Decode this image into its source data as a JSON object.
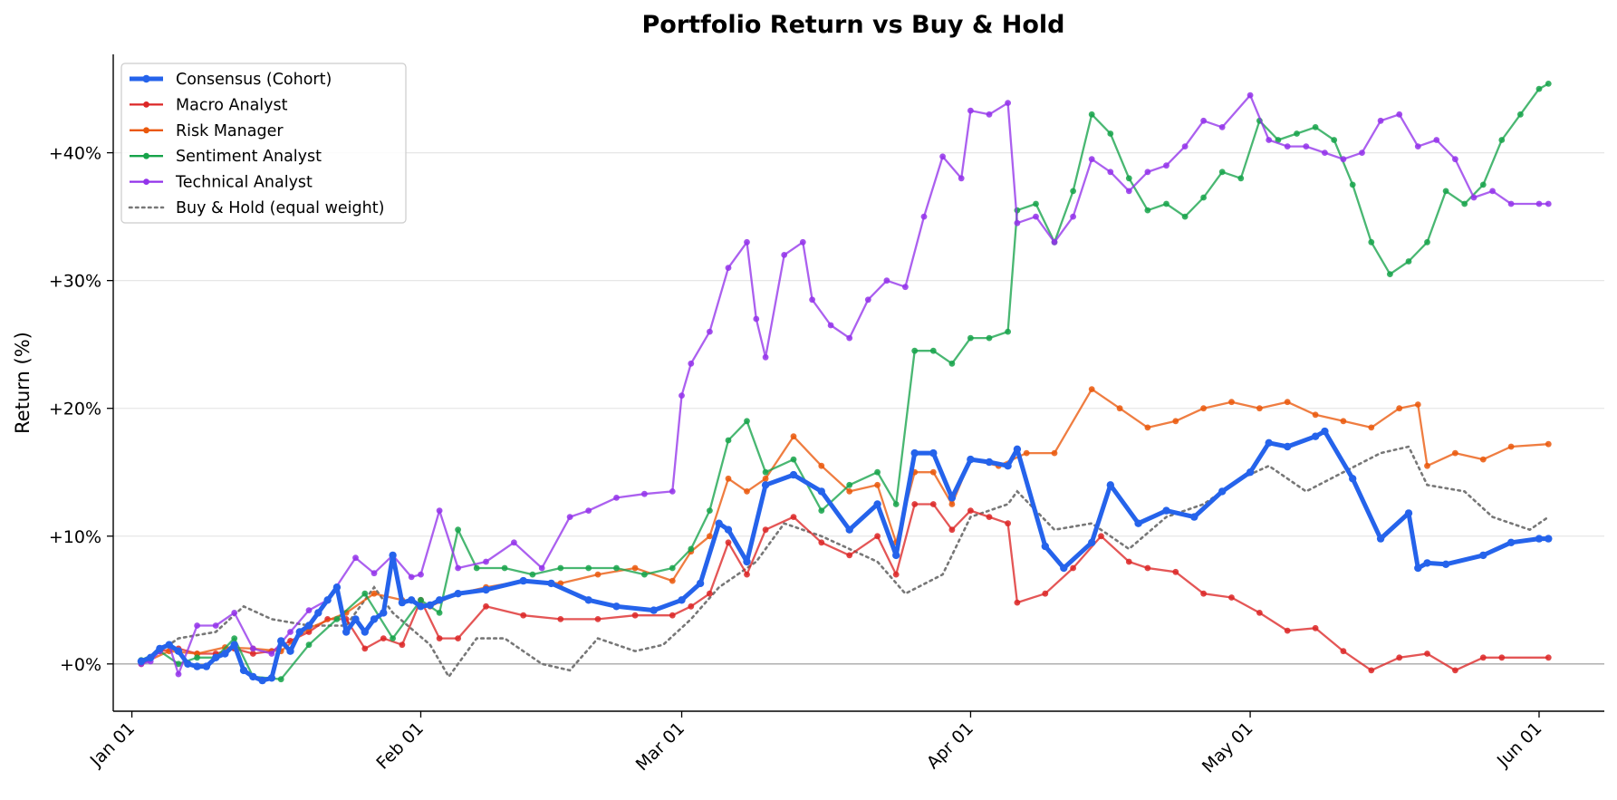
{
  "chart_data": {
    "type": "line",
    "title": "Portfolio Return vs Buy & Hold",
    "xlabel": "",
    "ylabel": "Return (%)",
    "x_range": [
      "2025-12-30",
      "2026-06-08"
    ],
    "ylim": [
      -3.7,
      47.7
    ],
    "x_ticks": [
      {
        "date": "2026-01-01",
        "label": "Jan 01"
      },
      {
        "date": "2026-02-01",
        "label": "Feb 01"
      },
      {
        "date": "2026-03-01",
        "label": "Mar 01"
      },
      {
        "date": "2026-04-01",
        "label": "Apr 01"
      },
      {
        "date": "2026-05-01",
        "label": "May 01"
      },
      {
        "date": "2026-06-01",
        "label": "Jun 01"
      }
    ],
    "y_ticks": [
      {
        "value": 0,
        "label": "+0%"
      },
      {
        "value": 10,
        "label": "+10%"
      },
      {
        "value": 20,
        "label": "+20%"
      },
      {
        "value": 30,
        "label": "+30%"
      },
      {
        "value": 40,
        "label": "+40%"
      }
    ],
    "grid": "horizontal",
    "legend_position": "top-left",
    "series": [
      {
        "name": "Consensus (Cohort)",
        "color": "#2563eb",
        "style": "thick-marker",
        "x": [
          "2026-01-02",
          "2026-01-03",
          "2026-01-04",
          "2026-01-05",
          "2026-01-06",
          "2026-01-07",
          "2026-01-08",
          "2026-01-09",
          "2026-01-10",
          "2026-01-11",
          "2026-01-12",
          "2026-01-13",
          "2026-01-14",
          "2026-01-15",
          "2026-01-16",
          "2026-01-17",
          "2026-01-18",
          "2026-01-19",
          "2026-01-20",
          "2026-01-21",
          "2026-01-22",
          "2026-01-23",
          "2026-01-24",
          "2026-01-25",
          "2026-01-26",
          "2026-01-27",
          "2026-01-28",
          "2026-01-29",
          "2026-01-30",
          "2026-01-31",
          "2026-02-01",
          "2026-02-02",
          "2026-02-03",
          "2026-02-05",
          "2026-02-08",
          "2026-02-12",
          "2026-02-15",
          "2026-02-19",
          "2026-02-22",
          "2026-02-26",
          "2026-03-01",
          "2026-03-03",
          "2026-03-05",
          "2026-03-06",
          "2026-03-08",
          "2026-03-10",
          "2026-03-13",
          "2026-03-16",
          "2026-03-19",
          "2026-03-22",
          "2026-03-24",
          "2026-03-26",
          "2026-03-28",
          "2026-03-30",
          "2026-04-01",
          "2026-04-03",
          "2026-04-05",
          "2026-04-06",
          "2026-04-09",
          "2026-04-11",
          "2026-04-14",
          "2026-04-16",
          "2026-04-19",
          "2026-04-22",
          "2026-04-25",
          "2026-04-28",
          "2026-05-01",
          "2026-05-03",
          "2026-05-05",
          "2026-05-08",
          "2026-05-09",
          "2026-05-12",
          "2026-05-15",
          "2026-05-18",
          "2026-05-19",
          "2026-05-20",
          "2026-05-22",
          "2026-05-26",
          "2026-05-29",
          "2026-06-01",
          "2026-06-02"
        ],
        "values": [
          0.2,
          0.5,
          1.2,
          1.5,
          1.0,
          0.0,
          -0.2,
          -0.2,
          0.5,
          0.8,
          1.5,
          -0.5,
          -1.0,
          -1.3,
          -1.1,
          1.8,
          1.0,
          2.5,
          3.0,
          4.0,
          5.0,
          6.0,
          2.5,
          3.5,
          2.5,
          3.5,
          4.0,
          8.5,
          4.8,
          5.0,
          4.5,
          4.6,
          5.0,
          5.5,
          5.8,
          6.5,
          6.3,
          5.0,
          4.5,
          4.2,
          5.0,
          6.3,
          11.0,
          10.5,
          8.0,
          14.0,
          14.8,
          13.5,
          10.5,
          12.5,
          8.5,
          16.5,
          16.5,
          13.0,
          16.0,
          15.8,
          15.5,
          16.8,
          9.2,
          7.5,
          9.5,
          14.0,
          11.0,
          12.0,
          11.5,
          13.5,
          15.0,
          17.3,
          17.0,
          17.8,
          18.2,
          14.5,
          9.8,
          11.8,
          7.5,
          7.9,
          7.8,
          8.5,
          9.5,
          9.8,
          9.8
        ]
      },
      {
        "name": "Macro Analyst",
        "color": "#dc2626",
        "style": "marker",
        "x": [
          "2026-01-02",
          "2026-01-04",
          "2026-01-06",
          "2026-01-08",
          "2026-01-10",
          "2026-01-12",
          "2026-01-14",
          "2026-01-16",
          "2026-01-18",
          "2026-01-20",
          "2026-01-22",
          "2026-01-24",
          "2026-01-26",
          "2026-01-28",
          "2026-01-30",
          "2026-02-01",
          "2026-02-03",
          "2026-02-05",
          "2026-02-08",
          "2026-02-12",
          "2026-02-16",
          "2026-02-20",
          "2026-02-24",
          "2026-02-28",
          "2026-03-02",
          "2026-03-04",
          "2026-03-06",
          "2026-03-08",
          "2026-03-10",
          "2026-03-13",
          "2026-03-16",
          "2026-03-19",
          "2026-03-22",
          "2026-03-24",
          "2026-03-26",
          "2026-03-28",
          "2026-03-30",
          "2026-04-01",
          "2026-04-03",
          "2026-04-05",
          "2026-04-06",
          "2026-04-09",
          "2026-04-12",
          "2026-04-15",
          "2026-04-18",
          "2026-04-20",
          "2026-04-23",
          "2026-04-26",
          "2026-04-29",
          "2026-05-02",
          "2026-05-05",
          "2026-05-08",
          "2026-05-11",
          "2026-05-14",
          "2026-05-17",
          "2026-05-20",
          "2026-05-23",
          "2026-05-26",
          "2026-05-28",
          "2026-06-02"
        ],
        "values": [
          0.0,
          1.0,
          1.2,
          0.8,
          0.8,
          1.2,
          0.8,
          1.0,
          1.8,
          2.5,
          3.5,
          3.5,
          1.2,
          2.0,
          1.5,
          5.0,
          2.0,
          2.0,
          4.5,
          3.8,
          3.5,
          3.5,
          3.8,
          3.8,
          4.5,
          5.5,
          9.5,
          7.0,
          10.5,
          11.5,
          9.5,
          8.5,
          10.0,
          7.0,
          12.5,
          12.5,
          10.5,
          12.0,
          11.5,
          11.0,
          4.8,
          5.5,
          7.5,
          10.0,
          8.0,
          7.5,
          7.2,
          5.5,
          5.2,
          4.0,
          2.6,
          2.8,
          1.0,
          -0.5,
          0.5,
          0.8,
          -0.5,
          0.5,
          0.5,
          0.5
        ]
      },
      {
        "name": "Risk Manager",
        "color": "#ea580c",
        "style": "marker",
        "x": [
          "2026-01-02",
          "2026-01-05",
          "2026-01-08",
          "2026-01-11",
          "2026-01-14",
          "2026-01-17",
          "2026-01-20",
          "2026-01-24",
          "2026-01-27",
          "2026-01-30",
          "2026-02-02",
          "2026-02-05",
          "2026-02-08",
          "2026-02-12",
          "2026-02-16",
          "2026-02-20",
          "2026-02-24",
          "2026-02-28",
          "2026-03-02",
          "2026-03-04",
          "2026-03-06",
          "2026-03-08",
          "2026-03-10",
          "2026-03-13",
          "2026-03-16",
          "2026-03-19",
          "2026-03-22",
          "2026-03-24",
          "2026-03-26",
          "2026-03-28",
          "2026-03-30",
          "2026-04-01",
          "2026-04-04",
          "2026-04-07",
          "2026-04-10",
          "2026-04-14",
          "2026-04-17",
          "2026-04-20",
          "2026-04-23",
          "2026-04-26",
          "2026-04-29",
          "2026-05-02",
          "2026-05-05",
          "2026-05-08",
          "2026-05-11",
          "2026-05-14",
          "2026-05-17",
          "2026-05-19",
          "2026-05-20",
          "2026-05-23",
          "2026-05-26",
          "2026-05-29",
          "2026-06-02"
        ],
        "values": [
          0.0,
          1.0,
          0.8,
          1.3,
          1.2,
          1.0,
          2.8,
          4.0,
          5.5,
          5.0,
          4.5,
          5.5,
          6.0,
          6.5,
          6.3,
          7.0,
          7.5,
          6.5,
          8.8,
          10.0,
          14.5,
          13.5,
          14.5,
          17.8,
          15.5,
          13.5,
          14.0,
          9.5,
          15.0,
          15.0,
          12.5,
          16.0,
          15.5,
          16.5,
          16.5,
          21.5,
          20.0,
          18.5,
          19.0,
          20.0,
          20.5,
          20.0,
          20.5,
          19.5,
          19.0,
          18.5,
          20.0,
          20.3,
          15.5,
          16.5,
          16.0,
          17.0,
          17.2
        ]
      },
      {
        "name": "Sentiment Analyst",
        "color": "#16a34a",
        "style": "marker",
        "x": [
          "2026-01-02",
          "2026-01-04",
          "2026-01-06",
          "2026-01-08",
          "2026-01-10",
          "2026-01-12",
          "2026-01-14",
          "2026-01-17",
          "2026-01-20",
          "2026-01-23",
          "2026-01-26",
          "2026-01-29",
          "2026-02-01",
          "2026-02-03",
          "2026-02-05",
          "2026-02-07",
          "2026-02-10",
          "2026-02-13",
          "2026-02-16",
          "2026-02-19",
          "2026-02-22",
          "2026-02-25",
          "2026-02-28",
          "2026-03-02",
          "2026-03-04",
          "2026-03-06",
          "2026-03-08",
          "2026-03-10",
          "2026-03-13",
          "2026-03-16",
          "2026-03-19",
          "2026-03-22",
          "2026-03-24",
          "2026-03-26",
          "2026-03-28",
          "2026-03-30",
          "2026-04-01",
          "2026-04-03",
          "2026-04-05",
          "2026-04-06",
          "2026-04-08",
          "2026-04-10",
          "2026-04-12",
          "2026-04-14",
          "2026-04-16",
          "2026-04-18",
          "2026-04-20",
          "2026-04-22",
          "2026-04-24",
          "2026-04-26",
          "2026-04-28",
          "2026-04-30",
          "2026-05-02",
          "2026-05-04",
          "2026-05-06",
          "2026-05-08",
          "2026-05-10",
          "2026-05-12",
          "2026-05-14",
          "2026-05-16",
          "2026-05-18",
          "2026-05-20",
          "2026-05-22",
          "2026-05-24",
          "2026-05-26",
          "2026-05-28",
          "2026-05-30",
          "2026-06-01",
          "2026-06-02"
        ],
        "values": [
          0.3,
          1.0,
          0.0,
          0.5,
          0.5,
          2.0,
          -1.0,
          -1.2,
          1.5,
          3.5,
          5.5,
          2.0,
          5.0,
          4.0,
          10.5,
          7.5,
          7.5,
          7.0,
          7.5,
          7.5,
          7.5,
          7.0,
          7.5,
          9.0,
          12.0,
          17.5,
          19.0,
          15.0,
          16.0,
          12.0,
          14.0,
          15.0,
          12.5,
          24.5,
          24.5,
          23.5,
          25.5,
          25.5,
          26.0,
          35.5,
          36.0,
          33.0,
          37.0,
          43.0,
          41.5,
          38.0,
          35.5,
          36.0,
          35.0,
          36.5,
          38.5,
          38.0,
          42.5,
          41.0,
          41.5,
          42.0,
          41.0,
          37.5,
          33.0,
          30.5,
          31.5,
          33.0,
          37.0,
          36.0,
          37.5,
          41.0,
          43.0,
          45.0,
          45.4
        ]
      },
      {
        "name": "Technical Analyst",
        "color": "#9333ea",
        "style": "marker",
        "x": [
          "2026-01-02",
          "2026-01-03",
          "2026-01-04",
          "2026-01-05",
          "2026-01-06",
          "2026-01-08",
          "2026-01-10",
          "2026-01-12",
          "2026-01-14",
          "2026-01-16",
          "2026-01-18",
          "2026-01-20",
          "2026-01-22",
          "2026-01-25",
          "2026-01-27",
          "2026-01-29",
          "2026-01-31",
          "2026-02-01",
          "2026-02-03",
          "2026-02-05",
          "2026-02-08",
          "2026-02-11",
          "2026-02-14",
          "2026-02-17",
          "2026-02-19",
          "2026-02-22",
          "2026-02-25",
          "2026-02-28",
          "2026-03-01",
          "2026-03-02",
          "2026-03-04",
          "2026-03-06",
          "2026-03-08",
          "2026-03-09",
          "2026-03-10",
          "2026-03-12",
          "2026-03-14",
          "2026-03-15",
          "2026-03-17",
          "2026-03-19",
          "2026-03-21",
          "2026-03-23",
          "2026-03-25",
          "2026-03-27",
          "2026-03-29",
          "2026-03-31",
          "2026-04-01",
          "2026-04-03",
          "2026-04-05",
          "2026-04-06",
          "2026-04-08",
          "2026-04-10",
          "2026-04-12",
          "2026-04-14",
          "2026-04-16",
          "2026-04-18",
          "2026-04-20",
          "2026-04-22",
          "2026-04-24",
          "2026-04-26",
          "2026-04-28",
          "2026-05-01",
          "2026-05-03",
          "2026-05-05",
          "2026-05-07",
          "2026-05-09",
          "2026-05-11",
          "2026-05-13",
          "2026-05-15",
          "2026-05-17",
          "2026-05-19",
          "2026-05-21",
          "2026-05-23",
          "2026-05-25",
          "2026-05-27",
          "2026-05-29",
          "2026-06-01",
          "2026-06-02"
        ],
        "values": [
          0.0,
          0.2,
          1.0,
          1.5,
          -0.8,
          3.0,
          3.0,
          4.0,
          1.2,
          0.8,
          2.5,
          4.2,
          5.0,
          8.3,
          7.1,
          8.5,
          6.8,
          7.0,
          12.0,
          7.5,
          8.0,
          9.5,
          7.5,
          11.5,
          12.0,
          13.0,
          13.3,
          13.5,
          21.0,
          23.5,
          26.0,
          31.0,
          33.0,
          27.0,
          24.0,
          32.0,
          33.0,
          28.5,
          26.5,
          25.5,
          28.5,
          30.0,
          29.5,
          35.0,
          39.7,
          38.0,
          43.3,
          43.0,
          43.9,
          34.5,
          35.0,
          33.0,
          35.0,
          39.5,
          38.5,
          37.0,
          38.5,
          39.0,
          40.5,
          42.5,
          42.0,
          44.5,
          41.0,
          40.5,
          40.5,
          40.0,
          39.5,
          40.0,
          42.5,
          43.0,
          40.5,
          41.0,
          39.5,
          36.5,
          37.0,
          36.0,
          36.0,
          36.0
        ]
      },
      {
        "name": "Buy & Hold (equal weight)",
        "color": "#777777",
        "style": "dotted",
        "x": [
          "2026-01-02",
          "2026-01-06",
          "2026-01-10",
          "2026-01-13",
          "2026-01-16",
          "2026-01-20",
          "2026-01-24",
          "2026-01-27",
          "2026-01-29",
          "2026-02-02",
          "2026-02-04",
          "2026-02-07",
          "2026-02-10",
          "2026-02-14",
          "2026-02-17",
          "2026-02-20",
          "2026-02-24",
          "2026-02-27",
          "2026-03-02",
          "2026-03-05",
          "2026-03-09",
          "2026-03-12",
          "2026-03-16",
          "2026-03-19",
          "2026-03-22",
          "2026-03-25",
          "2026-03-29",
          "2026-04-01",
          "2026-04-05",
          "2026-04-06",
          "2026-04-10",
          "2026-04-14",
          "2026-04-18",
          "2026-04-22",
          "2026-04-26",
          "2026-04-30",
          "2026-05-03",
          "2026-05-07",
          "2026-05-11",
          "2026-05-15",
          "2026-05-18",
          "2026-05-20",
          "2026-05-24",
          "2026-05-27",
          "2026-05-31",
          "2026-06-02"
        ],
        "values": [
          0.0,
          2.0,
          2.5,
          4.5,
          3.5,
          3.0,
          3.0,
          6.0,
          4.0,
          1.5,
          -1.0,
          2.0,
          2.0,
          0.0,
          -0.5,
          2.0,
          1.0,
          1.5,
          3.5,
          6.0,
          8.0,
          11.0,
          10.0,
          9.0,
          8.0,
          5.5,
          7.0,
          11.5,
          12.5,
          13.5,
          10.5,
          11.0,
          9.0,
          11.5,
          12.5,
          14.5,
          15.5,
          13.5,
          15.0,
          16.5,
          17.0,
          14.0,
          13.5,
          11.5,
          10.5,
          11.5
        ]
      }
    ]
  }
}
